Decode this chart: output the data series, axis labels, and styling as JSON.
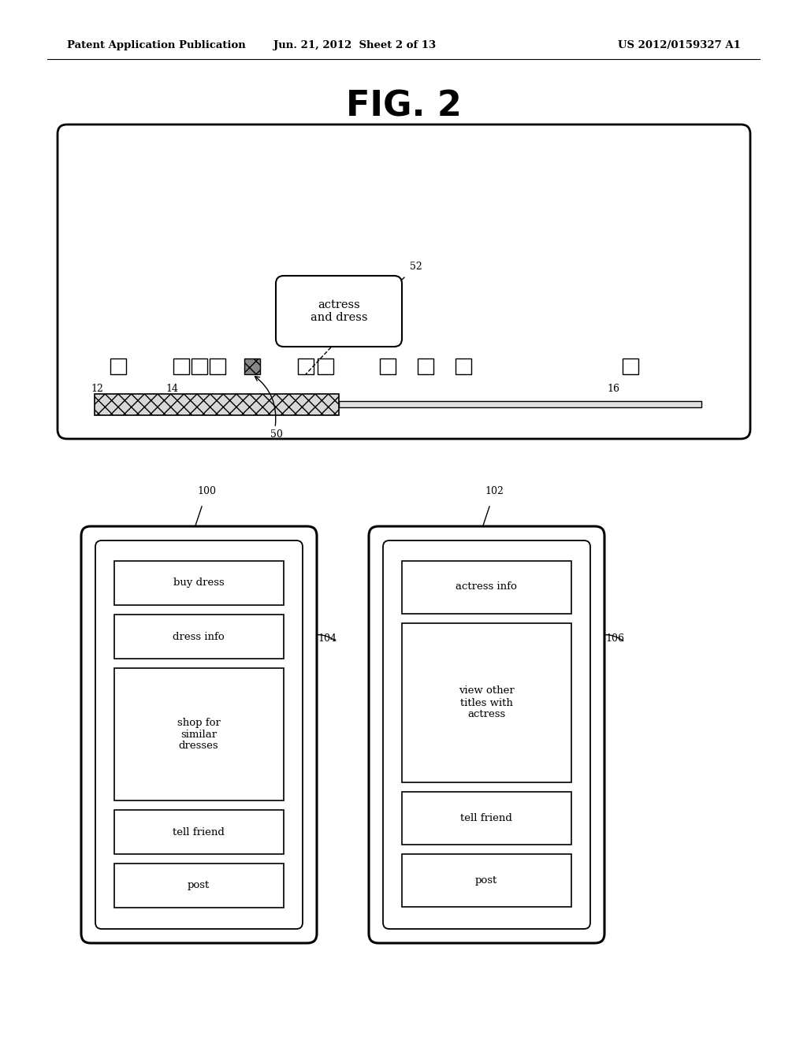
{
  "header_left": "Patent Application Publication",
  "header_center": "Jun. 21, 2012  Sheet 2 of 13",
  "header_right": "US 2012/0159327 A1",
  "fig_title": "FIG. 2",
  "bg_color": "#ffffff",
  "label_12": "12",
  "label_14": "14",
  "label_16": "16",
  "label_50": "50",
  "label_52": "52",
  "bubble_text": "actress\nand dress",
  "left_phone": {
    "label": "100",
    "arrow_label": "104",
    "items": [
      "buy dress",
      "dress info",
      "shop for\nsimilar\ndresses",
      "tell friend",
      "post"
    ]
  },
  "right_phone": {
    "label": "102",
    "arrow_label": "106",
    "items": [
      "actress info",
      "view other\ntitles with\nactress",
      "tell friend",
      "post"
    ]
  }
}
